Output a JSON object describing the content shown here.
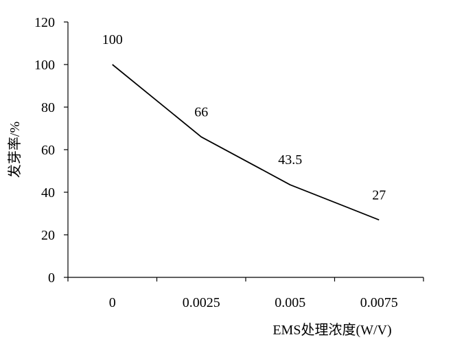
{
  "chart_data": {
    "type": "line",
    "title": "",
    "xlabel": "EMS处理浓度(W/V)",
    "ylabel": "发芽率/%",
    "categories": [
      "0",
      "0.0025",
      "0.005",
      "0.0075"
    ],
    "series": [
      {
        "values": [
          100,
          66,
          43.5,
          27
        ],
        "data_labels": [
          "100",
          "66",
          "43.5",
          "27"
        ]
      }
    ],
    "ylim": [
      0,
      120
    ],
    "yticks": [
      0,
      20,
      40,
      60,
      80,
      100,
      120
    ],
    "ytick_labels": [
      "0",
      "20",
      "40",
      "60",
      "80",
      "100",
      "120"
    ],
    "grid": false,
    "legend": "none",
    "line_color": "#000000"
  }
}
